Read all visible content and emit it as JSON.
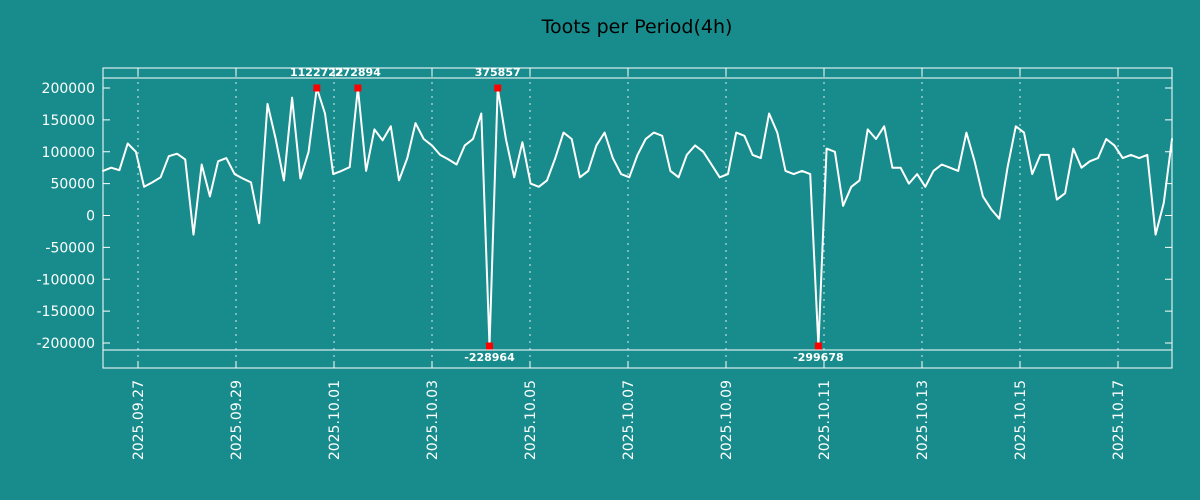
{
  "title": "Toots per Period(4h)",
  "colors": {
    "background": "#188c8c",
    "line": "#ffffff",
    "marker": "#ff0000",
    "title_text": "#000000",
    "tick_text": "#ffffff"
  },
  "chart_data": {
    "type": "line",
    "title": "Toots per Period(4h)",
    "xlabel": "",
    "ylabel": "",
    "ylim": [
      -210000,
      210000
    ],
    "ytick_interval": 50000,
    "grid": "vertical-dashed",
    "legend": "none",
    "ytick_labels": [
      "200000",
      "150000",
      "100000",
      "50000",
      "0",
      "-50000",
      "-100000",
      "-150000",
      "-200000"
    ],
    "xtick_labels": [
      "2025.09.27",
      "2025.09.29",
      "2025.10.01",
      "2025.10.03",
      "2025.10.05",
      "2025.10.07",
      "2025.10.09",
      "2025.10.11",
      "2025.10.13",
      "2025.10.15",
      "2025.10.17"
    ],
    "values": [
      70000,
      75000,
      71000,
      113000,
      100000,
      45000,
      52000,
      60000,
      93000,
      97000,
      88000,
      -30000,
      80000,
      30000,
      85000,
      90000,
      65000,
      58000,
      52000,
      -12000,
      175000,
      120000,
      55000,
      185000,
      58000,
      100000,
      1122722,
      160000,
      65000,
      70000,
      76000,
      272894,
      70000,
      135000,
      118000,
      140000,
      55000,
      90000,
      145000,
      120000,
      110000,
      95000,
      88000,
      80000,
      110000,
      120000,
      160000,
      -228964,
      375857,
      120000,
      60000,
      115000,
      50000,
      45000,
      55000,
      90000,
      130000,
      120000,
      60000,
      70000,
      110000,
      130000,
      90000,
      65000,
      60000,
      95000,
      120000,
      130000,
      125000,
      70000,
      60000,
      95000,
      110000,
      100000,
      80000,
      60000,
      65000,
      130000,
      125000,
      95000,
      90000,
      160000,
      130000,
      70000,
      65000,
      70000,
      65000,
      -299678,
      105000,
      100000,
      15000,
      45000,
      55000,
      135000,
      120000,
      140000,
      75000,
      75000,
      50000,
      65000,
      45000,
      70000,
      80000,
      75000,
      70000,
      130000,
      85000,
      30000,
      10000,
      -5000,
      75000,
      140000,
      130000,
      65000,
      95000,
      95000,
      25000,
      35000,
      105000,
      75000,
      85000,
      90000,
      120000,
      110000,
      90000,
      95000,
      90000,
      95000,
      -30000,
      20000,
      120000
    ],
    "annotations": [
      {
        "label": "1122722",
        "value": 1122722,
        "index": 26,
        "position": "top"
      },
      {
        "label": "272894",
        "value": 272894,
        "index": 31,
        "position": "top"
      },
      {
        "label": "375857",
        "value": 375857,
        "index": 48,
        "position": "top"
      },
      {
        "label": "-228964",
        "value": -228964,
        "index": 47,
        "position": "bottom"
      },
      {
        "label": "-299678",
        "value": -299678,
        "index": 87,
        "position": "bottom"
      }
    ]
  }
}
